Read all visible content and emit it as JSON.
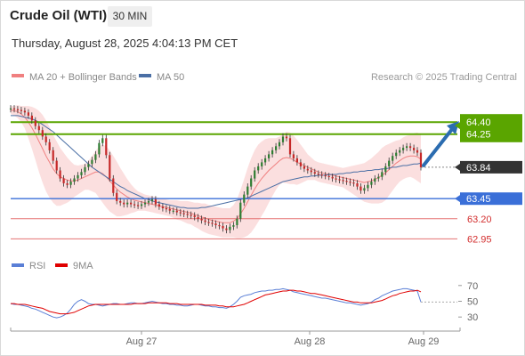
{
  "header": {
    "instrument": "Crude Oil (WTI)",
    "timeframe": "30 MIN",
    "timestamp": "Thursday, August 28, 2025 4:04:13 PM CET"
  },
  "legend": {
    "ma20_label": "MA 20 + Bollinger Bands",
    "ma50_label": "MA 50",
    "credit": "Research © 2025 Trading Central",
    "rsi_label": "RSI",
    "rsi9ma_label": "9MA"
  },
  "colors": {
    "up": "#2e7d32",
    "down": "#c62828",
    "bollinger": "#fad4d4",
    "ma20": "#f08080",
    "ma50": "#4a6fa5",
    "resistance": "#5aa500",
    "support_blue": "#3a6fd8",
    "support_red": "#e57373",
    "price_box": "#333333",
    "arrow": "#2b6cb0",
    "rsi": "#5a7fd6",
    "rsi9ma": "#e00000"
  },
  "chart_data": [
    {
      "type": "candlestick",
      "title": "",
      "x_ticks": [
        "Aug 27",
        "Aug 28",
        "Aug 29"
      ],
      "y_range": [
        62.8,
        64.7
      ],
      "last_price": "63.84",
      "levels": [
        {
          "value": 64.4,
          "label": "64.40",
          "kind": "resistance"
        },
        {
          "value": 64.25,
          "label": "64.25",
          "kind": "resistance"
        },
        {
          "value": 63.45,
          "label": "63.45",
          "kind": "pivot"
        },
        {
          "value": 63.2,
          "label": "63.20",
          "kind": "support"
        },
        {
          "value": 62.95,
          "label": "62.95",
          "kind": "support"
        }
      ],
      "closes": [
        64.57,
        64.56,
        64.55,
        64.54,
        64.52,
        64.48,
        64.42,
        64.35,
        64.3,
        64.22,
        64.15,
        64.05,
        63.92,
        63.8,
        63.7,
        63.64,
        63.62,
        63.66,
        63.7,
        63.74,
        63.78,
        63.84,
        63.88,
        63.93,
        64.0,
        64.14,
        64.2,
        63.99,
        63.7,
        63.52,
        63.42,
        63.4,
        63.38,
        63.4,
        63.38,
        63.37,
        63.36,
        63.38,
        63.4,
        63.42,
        63.44,
        63.38,
        63.35,
        63.33,
        63.32,
        63.3,
        63.3,
        63.28,
        63.27,
        63.26,
        63.25,
        63.24,
        63.22,
        63.2,
        63.18,
        63.16,
        63.15,
        63.14,
        63.12,
        63.11,
        63.08,
        63.06,
        63.1,
        63.12,
        63.2,
        63.4,
        63.5,
        63.6,
        63.7,
        63.8,
        63.85,
        63.9,
        63.95,
        64.0,
        64.05,
        64.1,
        64.15,
        64.22,
        64.2,
        64.0,
        63.95,
        63.9,
        63.85,
        63.82,
        63.8,
        63.78,
        63.76,
        63.75,
        63.74,
        63.73,
        63.72,
        63.7,
        63.69,
        63.68,
        63.67,
        63.66,
        63.65,
        63.64,
        63.6,
        63.55,
        63.58,
        63.62,
        63.66,
        63.7,
        63.72,
        63.78,
        63.85,
        63.92,
        63.98,
        64.02,
        64.05,
        64.08,
        64.1,
        64.08,
        64.05,
        64.02,
        63.84
      ],
      "opens": [
        64.56,
        64.57,
        64.56,
        64.55,
        64.54,
        64.52,
        64.48,
        64.42,
        64.35,
        64.3,
        64.22,
        64.15,
        64.05,
        63.92,
        63.8,
        63.7,
        63.64,
        63.62,
        63.66,
        63.7,
        63.74,
        63.78,
        63.84,
        63.88,
        63.93,
        64.0,
        64.14,
        64.2,
        63.99,
        63.7,
        63.52,
        63.42,
        63.4,
        63.38,
        63.4,
        63.38,
        63.37,
        63.36,
        63.38,
        63.4,
        63.42,
        63.44,
        63.38,
        63.35,
        63.33,
        63.32,
        63.3,
        63.3,
        63.28,
        63.27,
        63.26,
        63.25,
        63.24,
        63.22,
        63.2,
        63.18,
        63.16,
        63.15,
        63.14,
        63.12,
        63.11,
        63.08,
        63.06,
        63.1,
        63.12,
        63.2,
        63.4,
        63.5,
        63.6,
        63.7,
        63.8,
        63.85,
        63.9,
        63.95,
        64.0,
        64.05,
        64.1,
        64.15,
        64.22,
        64.2,
        64.0,
        63.95,
        63.9,
        63.85,
        63.82,
        63.8,
        63.78,
        63.76,
        63.75,
        63.74,
        63.73,
        63.72,
        63.7,
        63.69,
        63.68,
        63.67,
        63.66,
        63.65,
        63.64,
        63.6,
        63.55,
        63.58,
        63.62,
        63.66,
        63.7,
        63.72,
        63.78,
        63.85,
        63.92,
        63.98,
        64.02,
        64.05,
        64.08,
        64.1,
        64.08,
        64.05,
        64.02
      ],
      "ma20": [
        64.55,
        64.54,
        64.53,
        64.5,
        64.46,
        64.4,
        64.33,
        64.25,
        64.16,
        64.07,
        63.98,
        63.9,
        63.82,
        63.76,
        63.72,
        63.7,
        63.68,
        63.67,
        63.67,
        63.68,
        63.7,
        63.72,
        63.74,
        63.76,
        63.78,
        63.78,
        63.76,
        63.72,
        63.67,
        63.62,
        63.57,
        63.53,
        63.5,
        63.47,
        63.45,
        63.43,
        63.42,
        63.41,
        63.4,
        63.39,
        63.38,
        63.37,
        63.36,
        63.35,
        63.34,
        63.33,
        63.32,
        63.31,
        63.3,
        63.29,
        63.28,
        63.27,
        63.25,
        63.24,
        63.22,
        63.21,
        63.19,
        63.18,
        63.17,
        63.16,
        63.15,
        63.15,
        63.15,
        63.17,
        63.2,
        63.26,
        63.33,
        63.41,
        63.49,
        63.57,
        63.64,
        63.7,
        63.75,
        63.8,
        63.84,
        63.88,
        63.92,
        63.95,
        63.96,
        63.95,
        63.93,
        63.9,
        63.88,
        63.86,
        63.84,
        63.82,
        63.8,
        63.78,
        63.77,
        63.76,
        63.75,
        63.74,
        63.73,
        63.72,
        63.71,
        63.7,
        63.69,
        63.68,
        63.67,
        63.66,
        63.65,
        63.66,
        63.67,
        63.69,
        63.71,
        63.74,
        63.77,
        63.81,
        63.85,
        63.89,
        63.92,
        63.95,
        63.97,
        63.98,
        63.98,
        63.97,
        63.94
      ],
      "ma50": [
        64.48,
        64.48,
        64.48,
        64.47,
        64.46,
        64.45,
        64.44,
        64.42,
        64.4,
        64.37,
        64.34,
        64.31,
        64.28,
        64.24,
        64.2,
        64.16,
        64.12,
        64.08,
        64.04,
        64.0,
        63.96,
        63.92,
        63.88,
        63.84,
        63.81,
        63.78,
        63.75,
        63.72,
        63.69,
        63.66,
        63.63,
        63.6,
        63.58,
        63.55,
        63.53,
        63.51,
        63.49,
        63.47,
        63.45,
        63.44,
        63.42,
        63.41,
        63.4,
        63.39,
        63.38,
        63.37,
        63.36,
        63.35,
        63.34,
        63.34,
        63.33,
        63.33,
        63.33,
        63.33,
        63.34,
        63.34,
        63.35,
        63.36,
        63.37,
        63.38,
        63.39,
        63.4,
        63.41,
        63.42,
        63.43,
        63.44,
        63.45,
        63.46,
        63.48,
        63.5,
        63.52,
        63.54,
        63.56,
        63.58,
        63.6,
        63.62,
        63.64,
        63.66,
        63.67,
        63.68,
        63.69,
        63.7,
        63.71,
        63.72,
        63.72,
        63.73,
        63.73,
        63.74,
        63.74,
        63.74,
        63.75,
        63.75,
        63.75,
        63.76,
        63.76,
        63.77,
        63.77,
        63.78,
        63.78,
        63.79,
        63.79,
        63.8,
        63.8,
        63.81,
        63.81,
        63.82,
        63.82,
        63.83,
        63.84,
        63.84,
        63.85,
        63.86,
        63.86,
        63.87,
        63.88,
        63.88,
        63.89
      ],
      "bb_width": [
        0.05,
        0.06,
        0.08,
        0.1,
        0.14,
        0.2,
        0.26,
        0.32,
        0.38,
        0.42,
        0.44,
        0.44,
        0.42,
        0.4,
        0.36,
        0.32,
        0.28,
        0.24,
        0.2,
        0.18,
        0.17,
        0.16,
        0.18,
        0.22,
        0.26,
        0.32,
        0.36,
        0.38,
        0.38,
        0.36,
        0.34,
        0.3,
        0.26,
        0.22,
        0.18,
        0.15,
        0.12,
        0.11,
        0.1,
        0.1,
        0.1,
        0.1,
        0.1,
        0.1,
        0.1,
        0.1,
        0.11,
        0.12,
        0.12,
        0.13,
        0.14,
        0.14,
        0.15,
        0.16,
        0.17,
        0.18,
        0.18,
        0.18,
        0.18,
        0.18,
        0.18,
        0.18,
        0.18,
        0.2,
        0.24,
        0.3,
        0.36,
        0.42,
        0.46,
        0.48,
        0.48,
        0.46,
        0.44,
        0.4,
        0.36,
        0.32,
        0.3,
        0.3,
        0.32,
        0.32,
        0.3,
        0.28,
        0.24,
        0.2,
        0.16,
        0.14,
        0.12,
        0.12,
        0.12,
        0.12,
        0.12,
        0.12,
        0.12,
        0.12,
        0.12,
        0.14,
        0.16,
        0.18,
        0.2,
        0.22,
        0.24,
        0.26,
        0.28,
        0.3,
        0.32,
        0.34,
        0.34,
        0.32,
        0.3,
        0.28,
        0.26,
        0.26,
        0.26,
        0.26,
        0.28,
        0.3,
        0.3
      ],
      "rsi_panel": {
        "y_ticks": [
          "70",
          "50",
          "30"
        ],
        "y_range": [
          20,
          80
        ],
        "rsi": [
          47,
          46,
          46,
          45,
          44,
          43,
          41,
          40,
          38,
          36,
          34,
          32,
          30,
          29,
          30,
          32,
          35,
          40,
          46,
          50,
          52,
          50,
          47,
          46,
          46,
          45,
          44,
          45,
          46,
          47,
          47,
          46,
          46,
          47,
          48,
          48,
          47,
          47,
          48,
          49,
          50,
          49,
          48,
          47,
          47,
          46,
          46,
          45,
          45,
          44,
          44,
          45,
          46,
          46,
          45,
          44,
          44,
          43,
          43,
          42,
          42,
          41,
          43,
          46,
          50,
          55,
          57,
          58,
          59,
          61,
          62,
          63,
          63,
          64,
          64,
          65,
          65,
          66,
          65,
          64,
          62,
          61,
          60,
          59,
          58,
          57,
          56,
          55,
          54,
          54,
          53,
          52,
          51,
          50,
          49,
          48,
          48,
          47,
          46,
          45,
          46,
          47,
          49,
          52,
          54,
          57,
          59,
          61,
          63,
          64,
          65,
          66,
          66,
          65,
          64,
          63,
          49
        ],
        "rsi9ma": [
          47,
          47,
          46,
          46,
          46,
          45,
          44,
          43,
          42,
          41,
          39,
          37,
          36,
          35,
          34,
          34,
          34,
          35,
          36,
          38,
          40,
          42,
          44,
          45,
          46,
          46,
          46,
          46,
          46,
          46,
          46,
          46,
          46,
          46,
          46,
          47,
          47,
          47,
          47,
          48,
          48,
          48,
          48,
          48,
          48,
          47,
          47,
          47,
          46,
          46,
          46,
          46,
          46,
          46,
          46,
          45,
          45,
          45,
          45,
          44,
          44,
          43,
          43,
          43,
          44,
          45,
          46,
          48,
          50,
          52,
          54,
          56,
          58,
          59,
          60,
          61,
          62,
          63,
          63,
          64,
          64,
          63,
          63,
          62,
          61,
          60,
          60,
          59,
          58,
          57,
          56,
          55,
          54,
          53,
          52,
          51,
          50,
          49,
          49,
          48,
          48,
          48,
          48,
          49,
          50,
          51,
          53,
          55,
          57,
          58,
          60,
          61,
          62,
          63,
          63,
          64,
          62
        ]
      }
    }
  ]
}
